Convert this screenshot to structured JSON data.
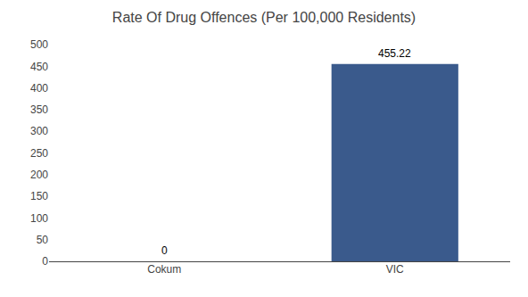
{
  "chart_data": {
    "type": "bar",
    "title": "Rate Of Drug Offences (Per 100,000 Residents)",
    "categories": [
      "Cokum",
      "VIC"
    ],
    "values": [
      0,
      455.22
    ],
    "color": "#3a5a8c",
    "ylim": [
      0,
      500
    ],
    "yticks": [
      0,
      50,
      100,
      150,
      200,
      250,
      300,
      350,
      400,
      450,
      500
    ],
    "grid": false,
    "data_labels": true
  }
}
